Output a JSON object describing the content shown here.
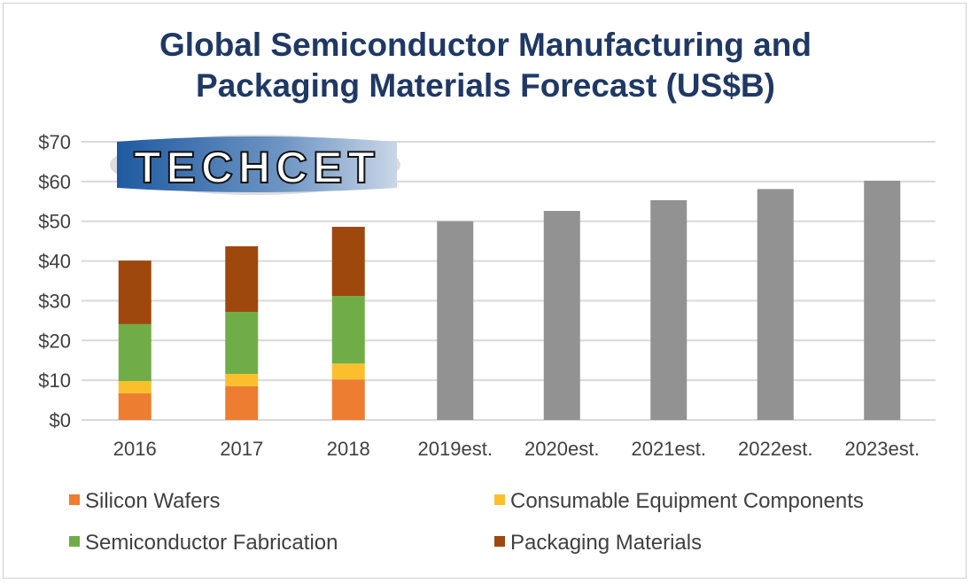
{
  "chart_data": {
    "type": "bar",
    "stacked": true,
    "title": "Global Semiconductor Manufacturing and Packaging Materials Forecast (US$B)",
    "title_lines": [
      "Global Semiconductor Manufacturing and",
      "Packaging Materials Forecast (US$B)"
    ],
    "categories": [
      "2016",
      "2017",
      "2018",
      "2019est.",
      "2020est.",
      "2021est.",
      "2022est.",
      "2023est."
    ],
    "ylim": [
      0,
      70
    ],
    "yticks": [
      0,
      10,
      20,
      30,
      40,
      50,
      60,
      70
    ],
    "ytick_labels": [
      "$0",
      "$10",
      "$20",
      "$30",
      "$40",
      "$50",
      "$60",
      "$70"
    ],
    "grid": true,
    "legend_placement": "bottom",
    "series": [
      {
        "name": "Silicon Wafers",
        "color": "#ed7d31",
        "values": [
          6.7,
          8.5,
          10.2,
          null,
          null,
          null,
          null,
          null
        ]
      },
      {
        "name": "Consumable Equipment Components",
        "color": "#fbbf2e",
        "values": [
          3.1,
          3.1,
          4.0,
          null,
          null,
          null,
          null,
          null
        ]
      },
      {
        "name": "Semiconductor Fabrication",
        "color": "#70ad47",
        "values": [
          14.3,
          15.6,
          17.0,
          null,
          null,
          null,
          null,
          null
        ]
      },
      {
        "name": "Packaging Materials",
        "color": "#9e480e",
        "values": [
          16.0,
          16.5,
          17.4,
          null,
          null,
          null,
          null,
          null
        ]
      }
    ],
    "estimate_totals": {
      "color": "#929292",
      "values": [
        null,
        null,
        null,
        50.0,
        52.6,
        55.3,
        58.1,
        60.2
      ]
    }
  },
  "logo": {
    "text": "TECHCET"
  }
}
